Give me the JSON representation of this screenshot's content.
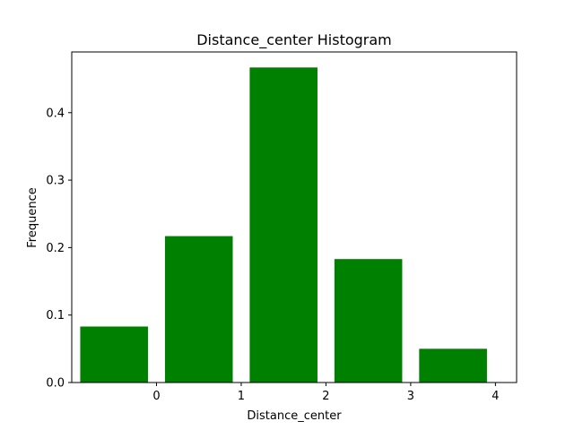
{
  "chart_data": {
    "type": "bar",
    "title": "Distance_center Histogram",
    "xlabel": "Distance_center",
    "ylabel": "Frequence",
    "bars": [
      {
        "x": -0.5,
        "value": 0.083
      },
      {
        "x": 0.5,
        "value": 0.217
      },
      {
        "x": 1.5,
        "value": 0.467
      },
      {
        "x": 2.5,
        "value": 0.183
      },
      {
        "x": 3.5,
        "value": 0.05
      }
    ],
    "bar_width": 0.8,
    "xlim": [
      -1.0,
      4.25
    ],
    "ylim": [
      0,
      0.49
    ],
    "xticks": [
      0,
      1,
      2,
      3,
      4
    ],
    "xtick_labels": [
      "0",
      "1",
      "2",
      "3",
      "4"
    ],
    "yticks": [
      0.0,
      0.1,
      0.2,
      0.3,
      0.4
    ],
    "ytick_labels": [
      "0.0",
      "0.1",
      "0.2",
      "0.3",
      "0.4"
    ],
    "bar_color": "#008000",
    "grid": false,
    "legend": "none"
  }
}
